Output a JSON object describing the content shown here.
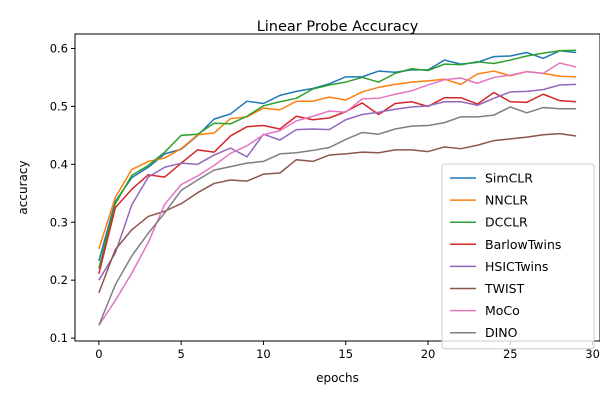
{
  "chart_data": {
    "type": "line",
    "title": "Linear Probe Accuracy",
    "xlabel": "epochs",
    "ylabel": "accuracy",
    "xlim": [
      -1.45,
      30.45
    ],
    "ylim": [
      0.095,
      0.625
    ],
    "xticks": [
      0,
      5,
      10,
      15,
      20,
      25,
      30
    ],
    "yticks": [
      0.1,
      0.2,
      0.3,
      0.4,
      0.5,
      0.6
    ],
    "ytick_labels": [
      "0.1",
      "0.2",
      "0.3",
      "0.4",
      "0.5",
      "0.6"
    ],
    "grid": false,
    "legend_position": "lower-right",
    "x": [
      0,
      1,
      2,
      3,
      4,
      5,
      6,
      7,
      8,
      9,
      10,
      11,
      12,
      13,
      14,
      15,
      16,
      17,
      18,
      19,
      20,
      21,
      22,
      23,
      24,
      25,
      26,
      27,
      28,
      29
    ],
    "series": [
      {
        "name": "SimCLR",
        "color": "#1f77b4",
        "values": [
          0.233,
          0.336,
          0.377,
          0.395,
          0.418,
          0.426,
          0.45,
          0.478,
          0.487,
          0.509,
          0.505,
          0.519,
          0.526,
          0.531,
          0.539,
          0.551,
          0.551,
          0.561,
          0.559,
          0.563,
          0.563,
          0.58,
          0.573,
          0.576,
          0.586,
          0.587,
          0.593,
          0.583,
          0.596,
          0.593
        ]
      },
      {
        "name": "NNCLR",
        "color": "#ff7f0e",
        "values": [
          0.254,
          0.343,
          0.391,
          0.405,
          0.411,
          0.427,
          0.451,
          0.454,
          0.479,
          0.482,
          0.497,
          0.494,
          0.509,
          0.509,
          0.516,
          0.511,
          0.525,
          0.533,
          0.538,
          0.542,
          0.544,
          0.547,
          0.538,
          0.556,
          0.561,
          0.553,
          0.56,
          0.557,
          0.552,
          0.551
        ]
      },
      {
        "name": "DCCLR",
        "color": "#2ca02c",
        "values": [
          0.22,
          0.332,
          0.381,
          0.398,
          0.421,
          0.45,
          0.452,
          0.471,
          0.47,
          0.483,
          0.501,
          0.508,
          0.514,
          0.53,
          0.537,
          0.542,
          0.55,
          0.542,
          0.557,
          0.565,
          0.562,
          0.573,
          0.572,
          0.577,
          0.574,
          0.58,
          0.587,
          0.592,
          0.596,
          0.597
        ]
      },
      {
        "name": "BarlowTwins",
        "color": "#d62728",
        "values": [
          0.211,
          0.325,
          0.357,
          0.382,
          0.378,
          0.402,
          0.425,
          0.421,
          0.449,
          0.465,
          0.467,
          0.461,
          0.483,
          0.477,
          0.48,
          0.491,
          0.506,
          0.486,
          0.505,
          0.508,
          0.5,
          0.515,
          0.515,
          0.504,
          0.524,
          0.508,
          0.507,
          0.521,
          0.51,
          0.508
        ]
      },
      {
        "name": "HSICTwins",
        "color": "#9467bd",
        "values": [
          0.2,
          0.247,
          0.33,
          0.378,
          0.395,
          0.402,
          0.4,
          0.416,
          0.428,
          0.413,
          0.452,
          0.442,
          0.46,
          0.461,
          0.46,
          0.477,
          0.486,
          0.49,
          0.495,
          0.499,
          0.501,
          0.508,
          0.508,
          0.502,
          0.514,
          0.525,
          0.526,
          0.529,
          0.537,
          0.538
        ]
      },
      {
        "name": "TWIST",
        "color": "#8c564b",
        "values": [
          0.178,
          0.253,
          0.287,
          0.31,
          0.319,
          0.332,
          0.351,
          0.367,
          0.373,
          0.371,
          0.383,
          0.385,
          0.408,
          0.405,
          0.416,
          0.418,
          0.421,
          0.42,
          0.425,
          0.425,
          0.422,
          0.43,
          0.427,
          0.433,
          0.441,
          0.444,
          0.447,
          0.451,
          0.453,
          0.449
        ]
      },
      {
        "name": "MoCo",
        "color": "#e377c2",
        "values": [
          0.122,
          0.165,
          0.212,
          0.265,
          0.331,
          0.365,
          0.38,
          0.398,
          0.419,
          0.432,
          0.451,
          0.458,
          0.475,
          0.483,
          0.492,
          0.49,
          0.513,
          0.514,
          0.521,
          0.527,
          0.537,
          0.546,
          0.549,
          0.54,
          0.55,
          0.554,
          0.56,
          0.557,
          0.575,
          0.568
        ]
      },
      {
        "name": "DINO",
        "color": "#7f7f7f",
        "values": [
          0.122,
          0.192,
          0.242,
          0.281,
          0.316,
          0.355,
          0.373,
          0.39,
          0.396,
          0.402,
          0.405,
          0.418,
          0.42,
          0.424,
          0.429,
          0.443,
          0.455,
          0.452,
          0.461,
          0.466,
          0.467,
          0.472,
          0.482,
          0.482,
          0.485,
          0.499,
          0.489,
          0.498,
          0.496,
          0.496
        ]
      }
    ]
  }
}
